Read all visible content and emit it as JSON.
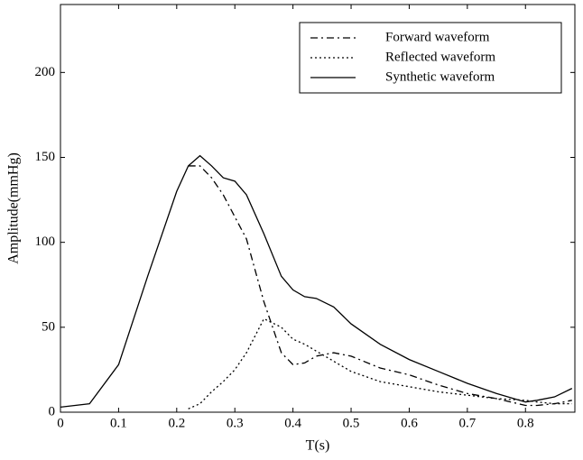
{
  "chart_data": {
    "type": "line",
    "x_label": "T(s)",
    "y_label": "Amplitude(mmHg)",
    "x": [
      0,
      0.05,
      0.1,
      0.15,
      0.2,
      0.22,
      0.24,
      0.26,
      0.28,
      0.3,
      0.32,
      0.35,
      0.38,
      0.4,
      0.42,
      0.44,
      0.47,
      0.5,
      0.55,
      0.6,
      0.65,
      0.7,
      0.75,
      0.8,
      0.82,
      0.85,
      0.88
    ],
    "series": [
      {
        "name": "Forward waveform",
        "color": "#000000",
        "linestyle": "dashdot",
        "values": [
          null,
          null,
          null,
          null,
          null,
          145,
          145,
          138,
          128,
          115,
          102,
          65,
          35,
          28,
          29,
          33,
          35,
          33,
          26,
          22,
          16,
          11,
          8,
          4,
          4,
          5,
          7
        ]
      },
      {
        "name": "Reflected waveform",
        "color": "#000000",
        "linestyle": "dotted",
        "values": [
          null,
          null,
          null,
          null,
          null,
          2,
          5,
          12,
          18,
          25,
          35,
          55,
          50,
          43,
          40,
          36,
          30,
          24,
          18,
          15,
          12,
          10,
          8,
          7,
          6,
          5,
          5
        ]
      },
      {
        "name": "Synthetic waveform",
        "color": "#000000",
        "linestyle": "solid",
        "values": [
          3,
          5,
          28,
          80,
          130,
          145,
          151,
          145,
          138,
          136,
          128,
          105,
          80,
          72,
          68,
          67,
          62,
          52,
          40,
          31,
          24,
          17,
          11,
          6,
          7,
          9,
          14
        ]
      }
    ],
    "xlim": [
      0,
      0.885
    ],
    "ylim": [
      0,
      240
    ],
    "xticks": [
      0,
      0.1,
      0.2,
      0.3,
      0.4,
      0.5,
      0.6,
      0.7,
      0.8
    ],
    "yticks": [
      0,
      50,
      100,
      150,
      200
    ],
    "legend": "upper right",
    "grid": false
  }
}
